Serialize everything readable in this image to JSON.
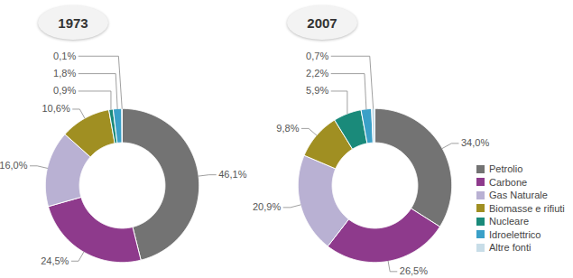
{
  "chart_data": [
    {
      "type": "pie",
      "title": "1973",
      "categories": [
        "Petrolio",
        "Carbone",
        "Gas Naturale",
        "Biomasse e rifiuti",
        "Nucleare",
        "Idroelettrico",
        "Altre fonti"
      ],
      "values": [
        46.1,
        24.5,
        16.0,
        10.6,
        0.9,
        1.8,
        0.1
      ],
      "value_labels": [
        "46,1%",
        "24,5%",
        "16,0%",
        "10,6%",
        "0,9%",
        "1,8%",
        "0,1%"
      ],
      "colors": [
        "#737373",
        "#8e3a8c",
        "#b9b1d3",
        "#a08f22",
        "#1a8a7a",
        "#3aa0c8",
        "#c8dde8"
      ],
      "data_labels": true
    },
    {
      "type": "pie",
      "title": "2007",
      "categories": [
        "Petrolio",
        "Carbone",
        "Gas Naturale",
        "Biomasse e rifiuti",
        "Nucleare",
        "Idroelettrico",
        "Altre fonti"
      ],
      "values": [
        34.0,
        26.5,
        20.9,
        9.8,
        5.9,
        2.2,
        0.7
      ],
      "value_labels": [
        "34,0%",
        "26,5%",
        "20,9%",
        "9,8%",
        "5,9%",
        "2,2%",
        "0,7%"
      ],
      "colors": [
        "#737373",
        "#8e3a8c",
        "#b9b1d3",
        "#a08f22",
        "#1a8a7a",
        "#3aa0c8",
        "#c8dde8"
      ],
      "data_labels": true,
      "legend": "right"
    }
  ]
}
